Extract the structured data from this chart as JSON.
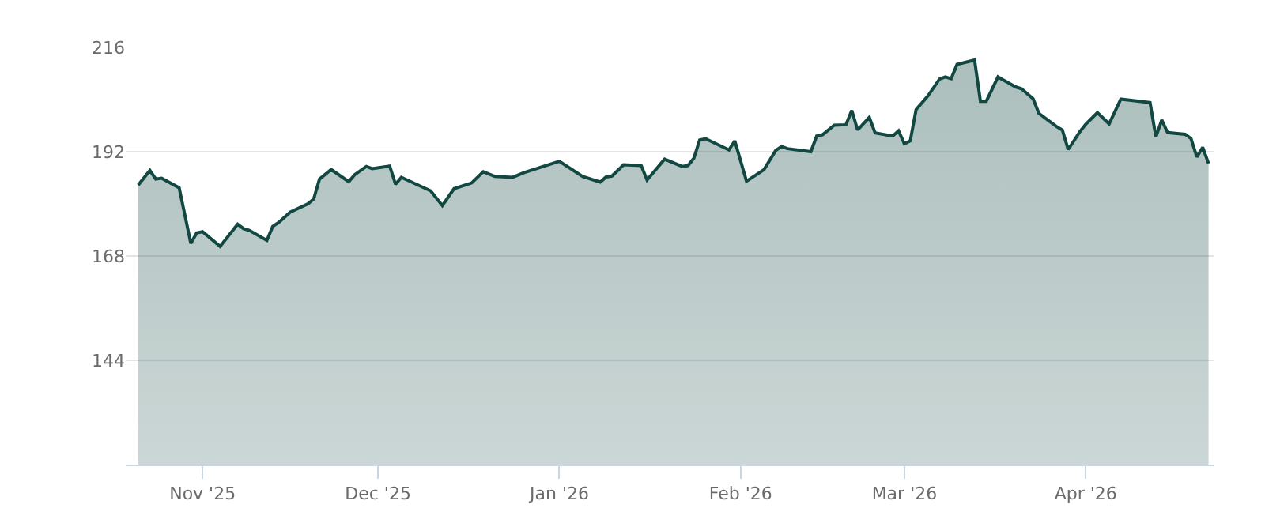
{
  "chart_data": {
    "type": "area",
    "x": [
      "2025-10-21",
      "2025-10-23",
      "2025-10-24",
      "2025-10-25",
      "2025-10-28",
      "2025-10-30",
      "2025-10-31",
      "2025-11-01",
      "2025-11-04",
      "2025-11-07",
      "2025-11-08",
      "2025-11-09",
      "2025-11-12",
      "2025-11-13",
      "2025-11-14",
      "2025-11-16",
      "2025-11-19",
      "2025-11-20",
      "2025-11-21",
      "2025-11-23",
      "2025-11-26",
      "2025-11-27",
      "2025-11-29",
      "2025-11-30",
      "2025-12-03",
      "2025-12-04",
      "2025-12-05",
      "2025-12-10",
      "2025-12-12",
      "2025-12-14",
      "2025-12-17",
      "2025-12-19",
      "2025-12-21",
      "2025-12-24",
      "2025-12-26",
      "2026-01-01",
      "2026-01-05",
      "2026-01-08",
      "2026-01-09",
      "2026-01-10",
      "2026-01-12",
      "2026-01-15",
      "2026-01-16",
      "2026-01-19",
      "2026-01-22",
      "2026-01-23",
      "2026-01-24",
      "2026-01-25",
      "2026-01-26",
      "2026-01-30",
      "2026-01-31",
      "2026-02-02",
      "2026-02-05",
      "2026-02-07",
      "2026-02-08",
      "2026-02-09",
      "2026-02-13",
      "2026-02-14",
      "2026-02-15",
      "2026-02-17",
      "2026-02-19",
      "2026-02-20",
      "2026-02-21",
      "2026-02-23",
      "2026-02-24",
      "2026-02-27",
      "2026-02-28",
      "2026-03-01",
      "2026-03-02",
      "2026-03-03",
      "2026-03-05",
      "2026-03-07",
      "2026-03-08",
      "2026-03-09",
      "2026-03-10",
      "2026-03-13",
      "2026-03-14",
      "2026-03-15",
      "2026-03-17",
      "2026-03-20",
      "2026-03-21",
      "2026-03-23",
      "2026-03-24",
      "2026-03-27",
      "2026-03-28",
      "2026-03-29",
      "2026-03-31",
      "2026-04-01",
      "2026-04-03",
      "2026-04-05",
      "2026-04-07",
      "2026-04-12",
      "2026-04-13",
      "2026-04-14",
      "2026-04-15",
      "2026-04-18",
      "2026-04-19",
      "2026-04-20",
      "2026-04-21",
      "2026-04-22"
    ],
    "series": [
      {
        "color": "#124842",
        "values": [
          184.3,
          187.7,
          185.7,
          185.9,
          183.7,
          170.9,
          173.3,
          173.6,
          170.2,
          175.3,
          174.3,
          173.9,
          171.6,
          174.8,
          175.7,
          178.1,
          180,
          181.1,
          185.7,
          187.9,
          185.1,
          186.7,
          188.6,
          188.1,
          188.7,
          184.5,
          186.1,
          183,
          179.6,
          183.5,
          184.8,
          187.4,
          186.3,
          186.1,
          187.2,
          189.8,
          186.3,
          185,
          186.2,
          186.4,
          189,
          188.8,
          185.5,
          190.3,
          188.6,
          188.8,
          190.5,
          194.7,
          195,
          192.4,
          194.5,
          185.2,
          187.9,
          192.3,
          193.2,
          192.7,
          192,
          195.6,
          195.9,
          198.1,
          198.2,
          201.5,
          197,
          199.9,
          196.3,
          195.6,
          196.8,
          193.8,
          194.5,
          201.7,
          204.8,
          208.7,
          209.2,
          208.8,
          212.1,
          213.1,
          203.6,
          203.6,
          209.2,
          206.9,
          206.5,
          204.2,
          200.8,
          197.8,
          197,
          192.5,
          196.6,
          198.3,
          201,
          198.4,
          204.1,
          203.3,
          195.4,
          199.3,
          196.4,
          196,
          195,
          190.8,
          193,
          189.3
        ]
      }
    ],
    "xlim": [
      "2025-10-19",
      "2026-04-23"
    ],
    "xticks": [
      {
        "value": "2025-11-01",
        "label": "Nov '25"
      },
      {
        "value": "2025-12-01",
        "label": "Dec '25"
      },
      {
        "value": "2026-01-01",
        "label": "Jan '26"
      },
      {
        "value": "2026-02-01",
        "label": "Feb '26"
      },
      {
        "value": "2026-03-01",
        "label": "Mar '26"
      },
      {
        "value": "2026-04-01",
        "label": "Apr '26"
      }
    ],
    "ylim": [
      120,
      216
    ],
    "yticks": [
      144,
      168,
      192,
      216
    ],
    "grid": "y",
    "marker": "none",
    "line_style": "solid"
  }
}
